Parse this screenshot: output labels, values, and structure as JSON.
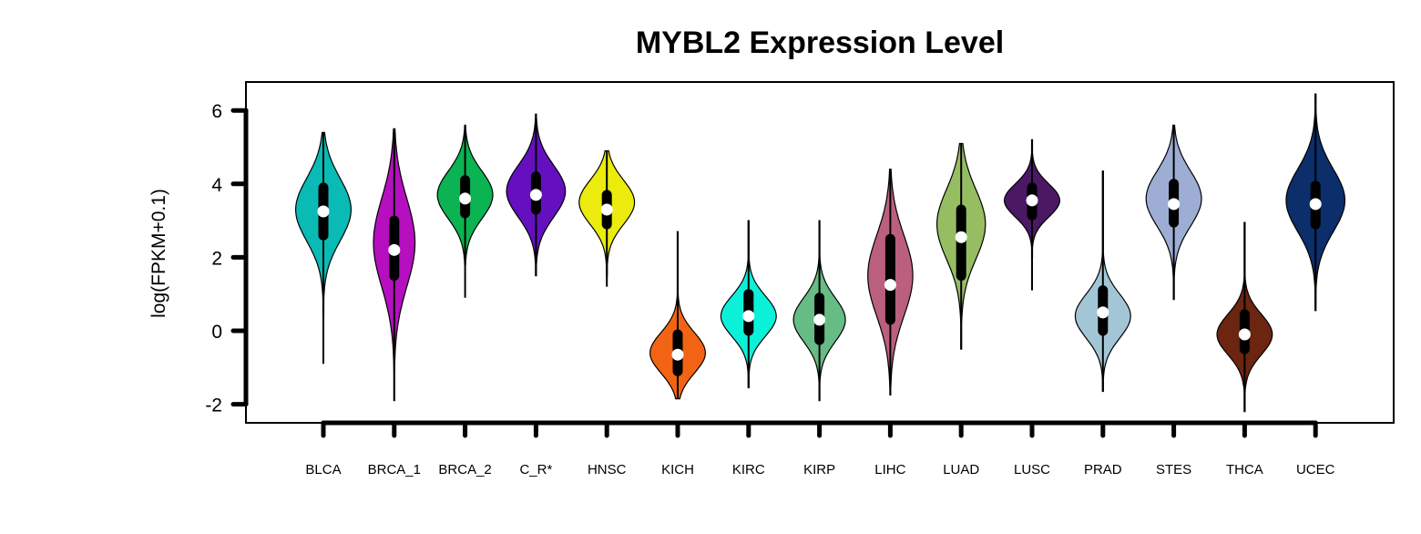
{
  "chart_data": {
    "type": "violin",
    "title": "MYBL2 Expression Level",
    "xlabel": "",
    "ylabel": "log(FPKM+0.1)",
    "ylim": [
      -2.5,
      6.8
    ],
    "yticks": [
      6,
      4,
      2,
      0,
      -2
    ],
    "ytick_labels": [
      "6",
      "4",
      "2",
      "0",
      "-2"
    ],
    "grid": false,
    "legend": "none",
    "categories": [
      "BLCA",
      "BRCA_1",
      "BRCA_2",
      "C_R*",
      "HNSC",
      "KICH",
      "KIRC",
      "KIRP",
      "LIHC",
      "LUAD",
      "LUSC",
      "PRAD",
      "STES",
      "THCA",
      "UCEC"
    ],
    "series": [
      {
        "category": "BLCA",
        "color": "#0ABAB5",
        "min": -0.9,
        "q1": 2.6,
        "median": 3.25,
        "q3": 3.9,
        "max": 5.4,
        "vmin": 0.4,
        "vmax": 5.4,
        "mode": 3.3,
        "spread": 0.85,
        "halfwidth": 0.8
      },
      {
        "category": "BRCA_1",
        "color": "#B50FBF",
        "min": -1.9,
        "q1": 1.5,
        "median": 2.2,
        "q3": 3.0,
        "max": 5.5,
        "vmin": -1.9,
        "vmax": 5.5,
        "mode": 2.4,
        "spread": 1.2,
        "halfwidth": 0.6
      },
      {
        "category": "BRCA_2",
        "color": "#0BB352",
        "min": 0.9,
        "q1": 3.2,
        "median": 3.6,
        "q3": 4.1,
        "max": 5.6,
        "vmin": 1.8,
        "vmax": 5.6,
        "mode": 3.7,
        "spread": 0.65,
        "halfwidth": 0.8
      },
      {
        "category": "C_R*",
        "color": "#6410BF",
        "min": 1.5,
        "q1": 3.3,
        "median": 3.7,
        "q3": 4.2,
        "max": 5.9,
        "vmin": 1.5,
        "vmax": 5.9,
        "mode": 3.8,
        "spread": 0.7,
        "halfwidth": 0.85
      },
      {
        "category": "HNSC",
        "color": "#EBEB0E",
        "min": 1.2,
        "q1": 2.9,
        "median": 3.3,
        "q3": 3.7,
        "max": 4.9,
        "vmin": 1.5,
        "vmax": 4.9,
        "mode": 3.5,
        "spread": 0.6,
        "halfwidth": 0.8
      },
      {
        "category": "KICH",
        "color": "#F26414",
        "min": -1.85,
        "q1": -1.1,
        "median": -0.65,
        "q3": -0.1,
        "max": 2.7,
        "vmin": -1.85,
        "vmax": 2.7,
        "mode": -0.6,
        "spread": 0.55,
        "halfwidth": 0.8
      },
      {
        "category": "KIRC",
        "color": "#0BF0D9",
        "min": -1.55,
        "q1": 0.0,
        "median": 0.4,
        "q3": 1.0,
        "max": 3.0,
        "vmin": -1.55,
        "vmax": 3.0,
        "mode": 0.4,
        "spread": 0.55,
        "halfwidth": 0.8
      },
      {
        "category": "KIRP",
        "color": "#66BC84",
        "min": -1.9,
        "q1": -0.25,
        "median": 0.3,
        "q3": 0.9,
        "max": 3.0,
        "vmin": -1.9,
        "vmax": 3.0,
        "mode": 0.3,
        "spread": 0.6,
        "halfwidth": 0.75
      },
      {
        "category": "LIHC",
        "color": "#BA607E",
        "min": -1.75,
        "q1": 0.3,
        "median": 1.25,
        "q3": 2.5,
        "max": 4.4,
        "vmin": -1.75,
        "vmax": 4.4,
        "mode": 1.5,
        "spread": 1.1,
        "halfwidth": 0.65
      },
      {
        "category": "LUAD",
        "color": "#97BD63",
        "min": -0.5,
        "q1": 1.5,
        "median": 2.55,
        "q3": 3.3,
        "max": 5.1,
        "vmin": -0.5,
        "vmax": 5.1,
        "mode": 2.9,
        "spread": 0.95,
        "halfwidth": 0.7
      },
      {
        "category": "LUSC",
        "color": "#4B1864",
        "min": 1.1,
        "q1": 3.15,
        "median": 3.55,
        "q3": 3.9,
        "max": 5.2,
        "vmin": 2.0,
        "vmax": 5.2,
        "mode": 3.55,
        "spread": 0.45,
        "halfwidth": 0.8
      },
      {
        "category": "PRAD",
        "color": "#A3C6D7",
        "min": -1.65,
        "q1": 0.0,
        "median": 0.5,
        "q3": 1.1,
        "max": 4.35,
        "vmin": -1.65,
        "vmax": 4.35,
        "mode": 0.4,
        "spread": 0.6,
        "halfwidth": 0.8
      },
      {
        "category": "STES",
        "color": "#9DADD4",
        "min": 0.85,
        "q1": 2.95,
        "median": 3.45,
        "q3": 4.0,
        "max": 5.6,
        "vmin": 0.85,
        "vmax": 5.6,
        "mode": 3.6,
        "spread": 0.75,
        "halfwidth": 0.8
      },
      {
        "category": "THCA",
        "color": "#6B2511",
        "min": -2.2,
        "q1": -0.5,
        "median": -0.1,
        "q3": 0.45,
        "max": 2.95,
        "vmin": -2.2,
        "vmax": 2.95,
        "mode": -0.1,
        "spread": 0.55,
        "halfwidth": 0.8
      },
      {
        "category": "UCEC",
        "color": "#0C2E6A",
        "min": 0.55,
        "q1": 2.9,
        "median": 3.45,
        "q3": 3.95,
        "max": 6.45,
        "vmin": 0.55,
        "vmax": 6.45,
        "mode": 3.55,
        "spread": 0.85,
        "halfwidth": 0.85
      }
    ]
  }
}
